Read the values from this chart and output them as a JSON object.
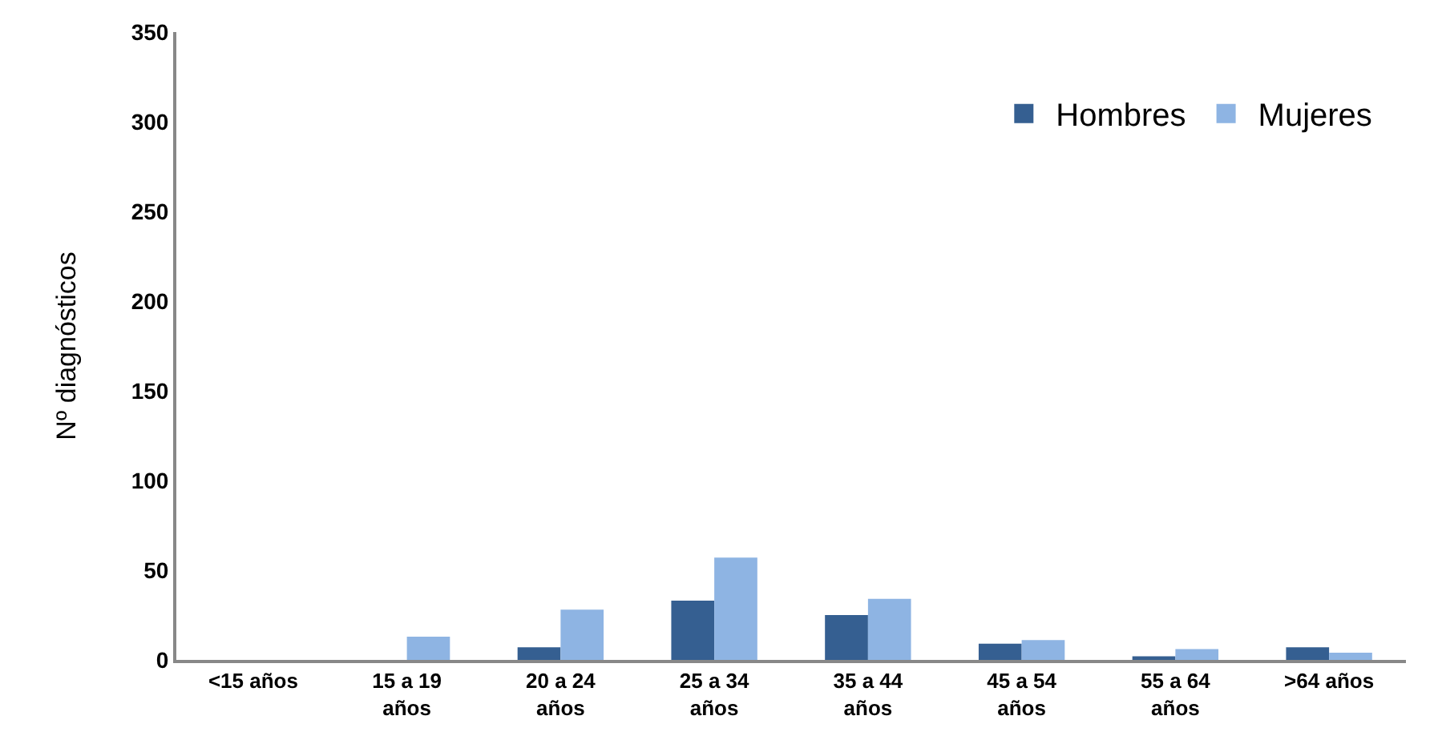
{
  "chart_data": {
    "type": "bar",
    "ylabel": "Nº diagnósticos",
    "categories": [
      "<15 años",
      "15 a 19 años",
      "20 a 24 años",
      "25 a 34 años",
      "35 a 44 años",
      "45 a 54 años",
      "55 a 64 años",
      ">64 años"
    ],
    "series": [
      {
        "name": "Hombres",
        "color": "#355f91",
        "values": [
          0,
          0,
          7,
          33,
          25,
          9,
          2,
          7
        ]
      },
      {
        "name": "Mujeres",
        "color": "#8eb4e3",
        "values": [
          0,
          13,
          28,
          57,
          34,
          11,
          6,
          4
        ]
      }
    ],
    "ylim": [
      0,
      350
    ],
    "yticks": [
      0,
      50,
      100,
      150,
      200,
      250,
      300,
      350
    ],
    "grid": false,
    "legend": "top right"
  }
}
